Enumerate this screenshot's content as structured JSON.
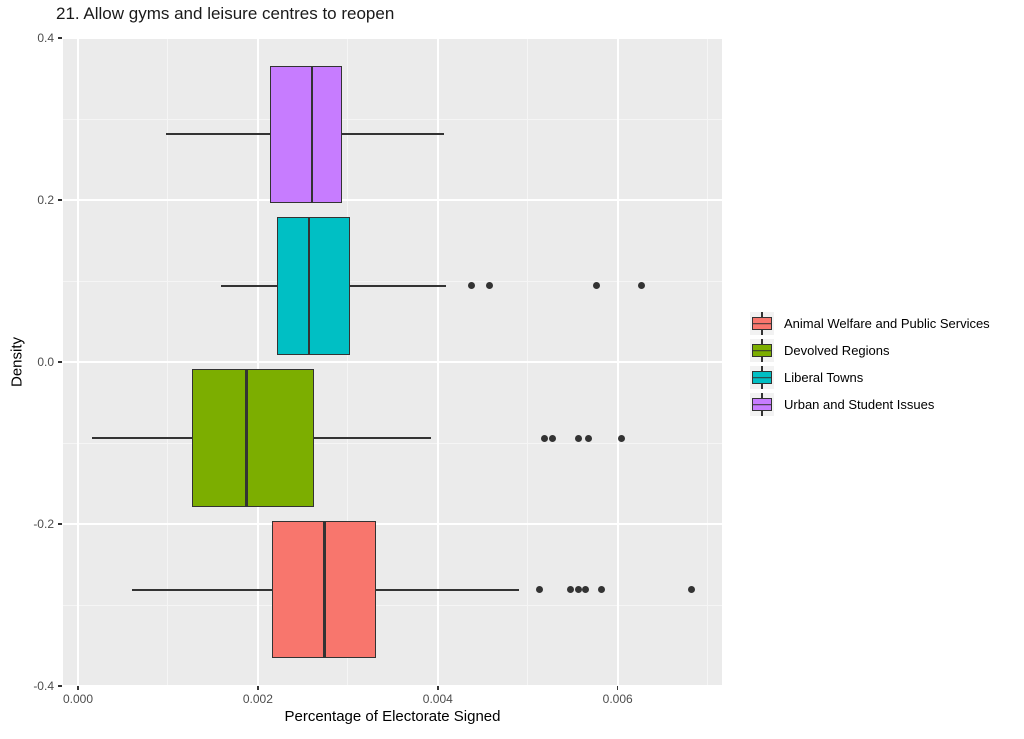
{
  "title": "21. Allow gyms and leisure centres to reopen",
  "chart_data": {
    "type": "boxplot-horizontal",
    "title": "21. Allow gyms and leisure centres to reopen",
    "xlabel": "Percentage of Electorate Signed",
    "ylabel": "Density",
    "xlim": [
      -0.000167,
      0.00716
    ],
    "ylim": [
      -0.4,
      0.4
    ],
    "x_ticks": {
      "values": [
        0.0,
        0.002,
        0.004,
        0.006
      ],
      "labels": [
        "0.000",
        "0.002",
        "0.004",
        "0.006"
      ]
    },
    "y_ticks": {
      "values": [
        0.4,
        0.2,
        0.0,
        -0.2,
        -0.4
      ],
      "labels": [
        "0.4",
        "0.2",
        "0.0",
        "-0.2",
        "-0.4"
      ]
    },
    "grid": {
      "x_major": [
        0.0,
        0.002,
        0.004,
        0.006
      ],
      "x_minor": [
        0.001,
        0.003,
        0.005,
        0.007
      ],
      "y_major": [
        -0.4,
        -0.2,
        0.0,
        0.2,
        0.4
      ],
      "y_minor": [
        -0.3,
        -0.1,
        0.1,
        0.3
      ]
    },
    "legend_position": "right",
    "box_height": 0.17,
    "series": [
      {
        "name": "Animal Welfare and Public Services",
        "slug": "animal-welfare-and-public-services",
        "color": "#F8766D",
        "y_center": -0.281,
        "whisker_min": 0.0006,
        "q1": 0.00216,
        "median": 0.00274,
        "q3": 0.00331,
        "whisker_max": 0.0049,
        "outliers": [
          0.00513,
          0.00548,
          0.00556,
          0.00564,
          0.00582,
          0.00682
        ]
      },
      {
        "name": "Devolved Regions",
        "slug": "devolved-regions",
        "color": "#7CAE00",
        "y_center": -0.094,
        "whisker_min": 0.00016,
        "q1": 0.00127,
        "median": 0.00187,
        "q3": 0.00262,
        "whisker_max": 0.00392,
        "outliers": [
          0.00519,
          0.00528,
          0.00557,
          0.00568,
          0.00604
        ]
      },
      {
        "name": "Liberal Towns",
        "slug": "liberal-towns",
        "color": "#00BFC4",
        "y_center": 0.094,
        "whisker_min": 0.00159,
        "q1": 0.00221,
        "median": 0.00257,
        "q3": 0.00302,
        "whisker_max": 0.00409,
        "outliers": [
          0.00437,
          0.00457,
          0.00577,
          0.00626
        ]
      },
      {
        "name": "Urban and Student Issues",
        "slug": "urban-and-student-issues",
        "color": "#C77CFF",
        "y_center": 0.281,
        "whisker_min": 0.00098,
        "q1": 0.00213,
        "median": 0.0026,
        "q3": 0.00293,
        "whisker_max": 0.00407,
        "outliers": []
      }
    ],
    "colors": {
      "panel_bg": "#EBEBEB",
      "grid_major": "#FFFFFF",
      "grid_minor": "#F5F5F5",
      "box_outline": "#333333",
      "outlier": "#333333",
      "legend_key_bg": "#F2F2F2",
      "tick_label": "#4D4D4D"
    }
  }
}
